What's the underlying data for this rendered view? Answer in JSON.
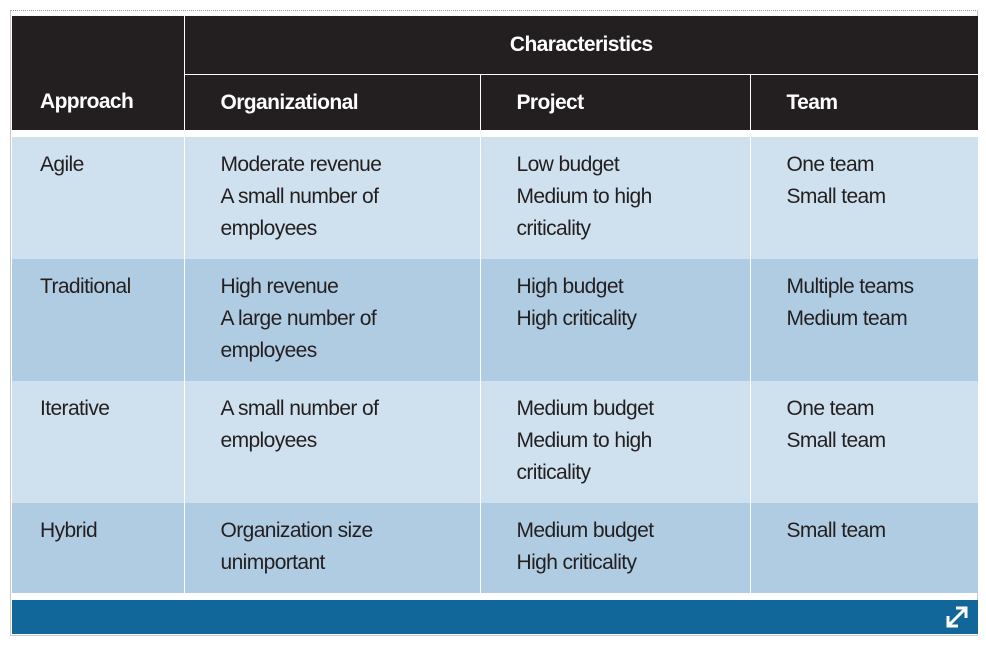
{
  "table": {
    "group_header": "Characteristics",
    "column_headers": [
      "Approach",
      "Organizational",
      "Project",
      "Team"
    ],
    "rows": [
      {
        "approach": "Agile",
        "organizational": [
          "Moderate revenue",
          "A small number of",
          "employees"
        ],
        "project": [
          "Low budget",
          "Medium to high",
          "criticality"
        ],
        "team": [
          "One team",
          "Small team"
        ]
      },
      {
        "approach": "Traditional",
        "organizational": [
          "High revenue",
          "A large number of",
          "employees"
        ],
        "project": [
          "High budget",
          "High criticality"
        ],
        "team": [
          "Multiple teams",
          "Medium team"
        ]
      },
      {
        "approach": "Iterative",
        "organizational": [
          "A small number of",
          "employees"
        ],
        "project": [
          "Medium budget",
          "Medium to high",
          "criticality"
        ],
        "team": [
          "One team",
          "Small team"
        ]
      },
      {
        "approach": "Hybrid",
        "organizational": [
          "Organization size",
          "unimportant"
        ],
        "project": [
          "Medium budget",
          "High criticality"
        ],
        "team": [
          "Small team"
        ]
      }
    ]
  },
  "footer": {
    "expand_icon": "expand-diagonal-arrow-icon",
    "bar_color": "#11679a"
  },
  "colors": {
    "header_bg": "#231f20",
    "row_light": "#cfe0ee",
    "row_dark": "#b0cce2"
  }
}
